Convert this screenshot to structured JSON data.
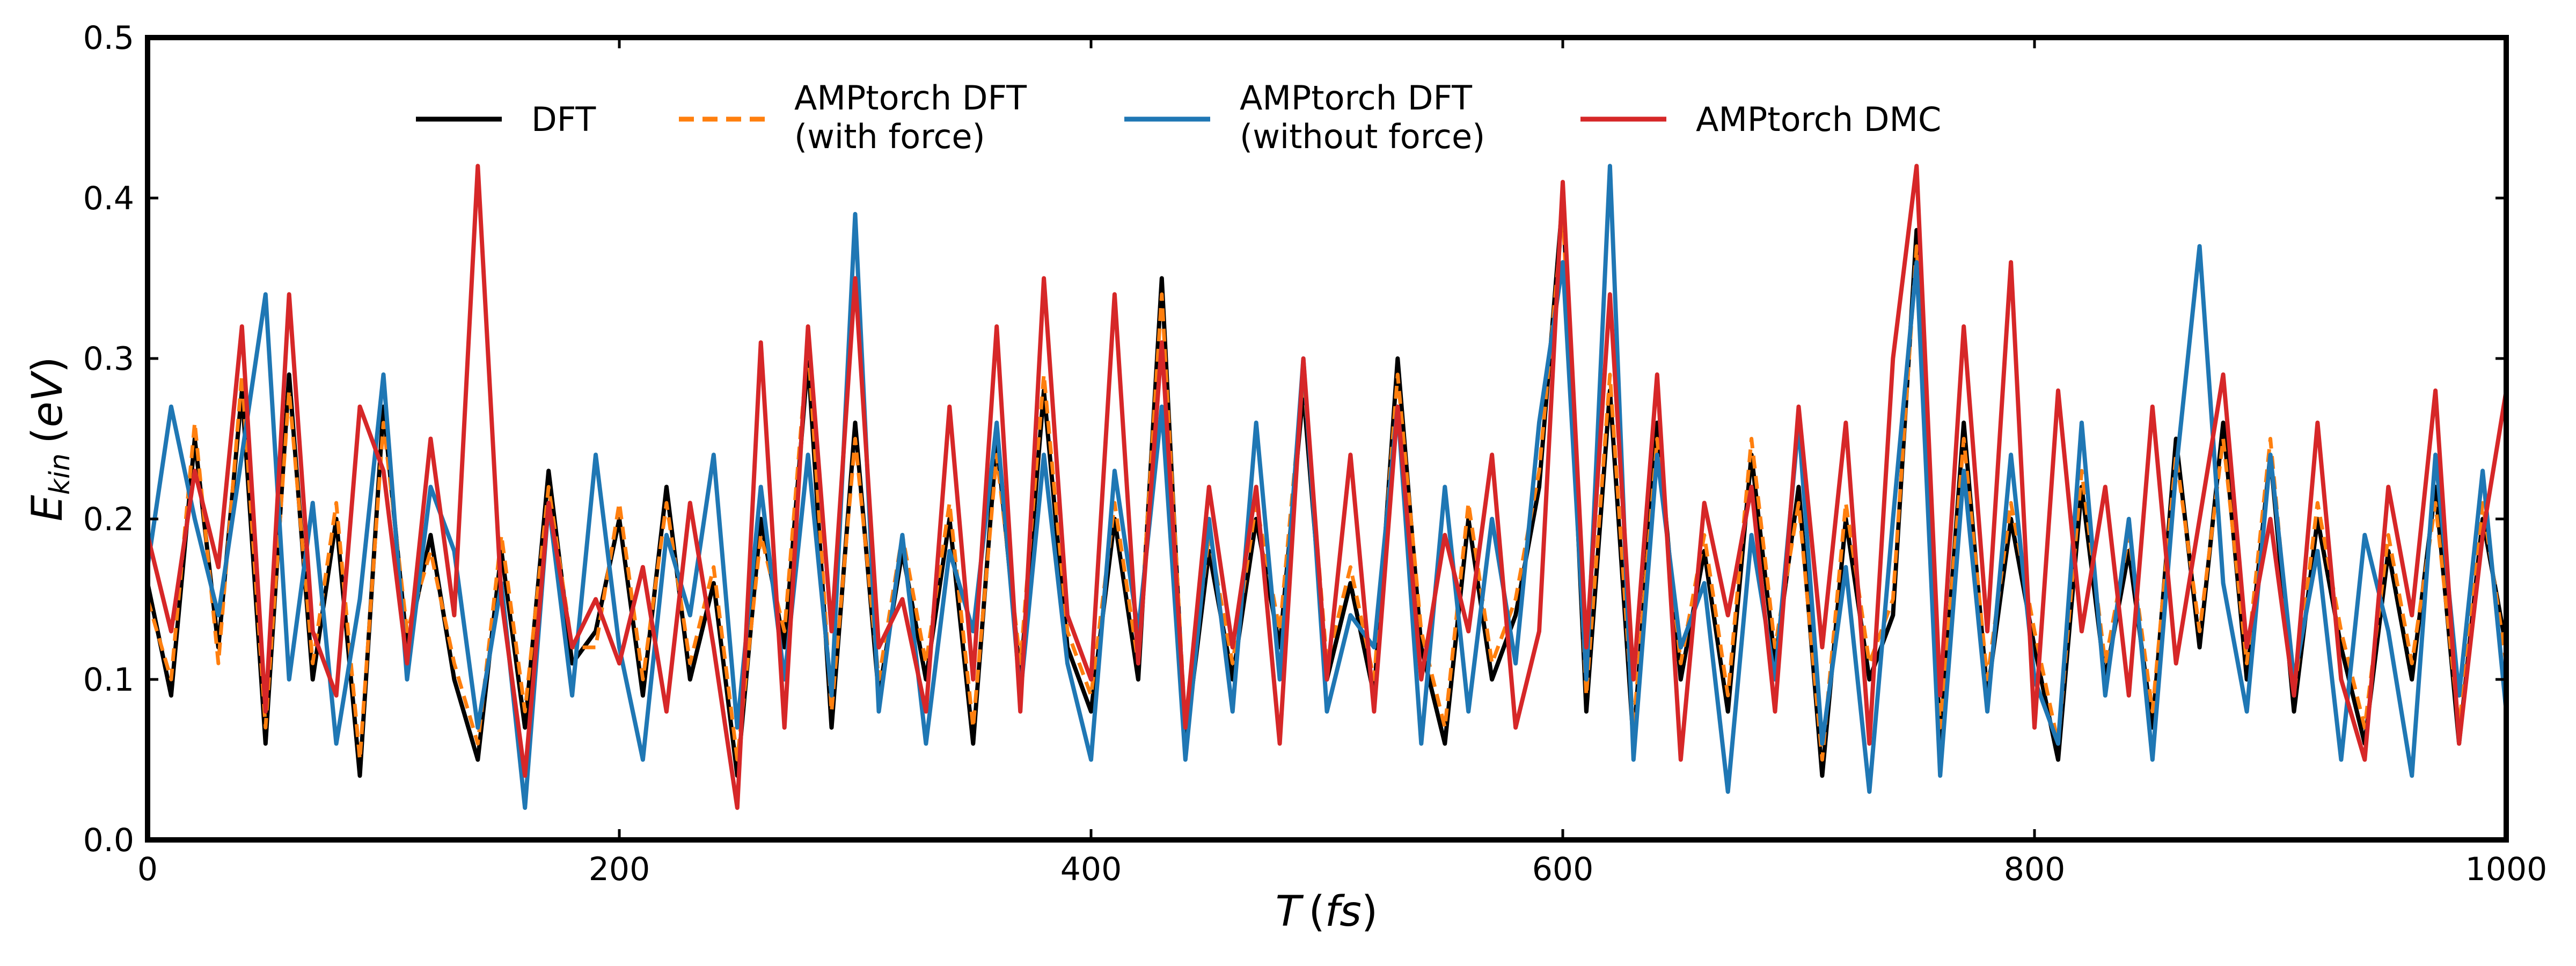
{
  "chart_data": {
    "type": "line",
    "xlabel": "T (fs)",
    "ylabel": "E_kin (eV)",
    "xlim": [
      0,
      1000
    ],
    "ylim": [
      0,
      0.5
    ],
    "xticks": [
      0,
      200,
      400,
      600,
      800,
      1000
    ],
    "yticks": [
      0.0,
      0.1,
      0.2,
      0.3,
      0.4,
      0.5
    ],
    "ytick_labels": [
      "0.0",
      "0.1",
      "0.2",
      "0.3",
      "0.4",
      "0.5"
    ],
    "grid": false,
    "legend_position": "top",
    "x": [
      0,
      10,
      20,
      30,
      40,
      50,
      60,
      70,
      80,
      90,
      100,
      110,
      120,
      130,
      140,
      150,
      160,
      170,
      180,
      190,
      200,
      210,
      220,
      230,
      240,
      250,
      260,
      270,
      280,
      290,
      300,
      310,
      320,
      330,
      340,
      350,
      360,
      370,
      380,
      390,
      400,
      410,
      420,
      430,
      440,
      450,
      460,
      470,
      480,
      490,
      500,
      510,
      520,
      530,
      540,
      550,
      560,
      570,
      580,
      590,
      600,
      610,
      620,
      630,
      640,
      650,
      660,
      670,
      680,
      690,
      700,
      710,
      720,
      730,
      740,
      750,
      760,
      770,
      780,
      790,
      800,
      810,
      820,
      830,
      840,
      850,
      860,
      870,
      880,
      890,
      900,
      910,
      920,
      930,
      940,
      950,
      960,
      970,
      980,
      990,
      1000
    ],
    "series": [
      {
        "name": "DFT",
        "color": "#000000",
        "dash": "solid",
        "values": [
          0.16,
          0.09,
          0.25,
          0.12,
          0.28,
          0.06,
          0.29,
          0.1,
          0.2,
          0.04,
          0.27,
          0.12,
          0.19,
          0.1,
          0.05,
          0.18,
          0.07,
          0.23,
          0.11,
          0.13,
          0.2,
          0.09,
          0.22,
          0.1,
          0.16,
          0.04,
          0.2,
          0.12,
          0.3,
          0.07,
          0.26,
          0.09,
          0.18,
          0.1,
          0.2,
          0.06,
          0.25,
          0.1,
          0.28,
          0.12,
          0.08,
          0.2,
          0.1,
          0.35,
          0.06,
          0.18,
          0.1,
          0.2,
          0.12,
          0.28,
          0.1,
          0.16,
          0.09,
          0.3,
          0.12,
          0.06,
          0.2,
          0.1,
          0.14,
          0.22,
          0.4,
          0.08,
          0.28,
          0.06,
          0.26,
          0.1,
          0.18,
          0.08,
          0.24,
          0.11,
          0.22,
          0.04,
          0.2,
          0.1,
          0.14,
          0.38,
          0.06,
          0.26,
          0.09,
          0.2,
          0.12,
          0.05,
          0.22,
          0.1,
          0.18,
          0.07,
          0.25,
          0.12,
          0.26,
          0.1,
          0.24,
          0.08,
          0.2,
          0.12,
          0.06,
          0.18,
          0.1,
          0.22,
          0.06,
          0.2,
          0.12
        ]
      },
      {
        "name": "AMPtorch DFT\n(with force)",
        "color": "#ff7f0e",
        "dash": "dashed",
        "values": [
          0.15,
          0.1,
          0.26,
          0.11,
          0.29,
          0.07,
          0.28,
          0.11,
          0.21,
          0.05,
          0.26,
          0.13,
          0.18,
          0.11,
          0.06,
          0.19,
          0.08,
          0.22,
          0.12,
          0.12,
          0.21,
          0.1,
          0.21,
          0.11,
          0.17,
          0.05,
          0.19,
          0.13,
          0.31,
          0.08,
          0.25,
          0.1,
          0.19,
          0.11,
          0.21,
          0.07,
          0.24,
          0.11,
          0.29,
          0.13,
          0.09,
          0.21,
          0.11,
          0.34,
          0.07,
          0.19,
          0.11,
          0.21,
          0.13,
          0.29,
          0.11,
          0.17,
          0.1,
          0.29,
          0.13,
          0.07,
          0.21,
          0.11,
          0.15,
          0.23,
          0.39,
          0.09,
          0.29,
          0.07,
          0.25,
          0.11,
          0.19,
          0.09,
          0.25,
          0.12,
          0.21,
          0.05,
          0.21,
          0.11,
          0.15,
          0.37,
          0.07,
          0.25,
          0.1,
          0.21,
          0.13,
          0.06,
          0.23,
          0.11,
          0.19,
          0.08,
          0.24,
          0.13,
          0.25,
          0.11,
          0.25,
          0.09,
          0.21,
          0.13,
          0.07,
          0.19,
          0.11,
          0.21,
          0.07,
          0.21,
          0.11
        ]
      },
      {
        "name": "AMPtorch DFT\n(without force)",
        "color": "#1f77b4",
        "dash": "solid",
        "values": [
          0.17,
          0.27,
          0.2,
          0.14,
          0.24,
          0.34,
          0.1,
          0.21,
          0.06,
          0.15,
          0.29,
          0.1,
          0.22,
          0.18,
          0.07,
          0.16,
          0.02,
          0.21,
          0.09,
          0.24,
          0.12,
          0.05,
          0.19,
          0.14,
          0.24,
          0.07,
          0.22,
          0.1,
          0.24,
          0.09,
          0.39,
          0.08,
          0.19,
          0.06,
          0.18,
          0.13,
          0.26,
          0.09,
          0.24,
          0.11,
          0.05,
          0.23,
          0.13,
          0.27,
          0.05,
          0.2,
          0.08,
          0.26,
          0.1,
          0.3,
          0.08,
          0.14,
          0.12,
          0.27,
          0.06,
          0.22,
          0.08,
          0.2,
          0.11,
          0.26,
          0.36,
          0.1,
          0.42,
          0.05,
          0.24,
          0.12,
          0.16,
          0.03,
          0.19,
          0.1,
          0.26,
          0.06,
          0.17,
          0.03,
          0.2,
          0.36,
          0.04,
          0.23,
          0.08,
          0.24,
          0.1,
          0.06,
          0.26,
          0.09,
          0.2,
          0.05,
          0.23,
          0.37,
          0.16,
          0.08,
          0.24,
          0.1,
          0.18,
          0.05,
          0.19,
          0.13,
          0.04,
          0.24,
          0.09,
          0.23,
          0.08
        ]
      },
      {
        "name": "AMPtorch DMC",
        "color": "#d62728",
        "dash": "solid",
        "values": [
          0.19,
          0.13,
          0.23,
          0.17,
          0.32,
          0.08,
          0.34,
          0.13,
          0.09,
          0.27,
          0.23,
          0.11,
          0.25,
          0.14,
          0.42,
          0.15,
          0.04,
          0.21,
          0.12,
          0.15,
          0.11,
          0.17,
          0.08,
          0.21,
          0.12,
          0.02,
          0.31,
          0.07,
          0.32,
          0.13,
          0.35,
          0.12,
          0.15,
          0.08,
          0.27,
          0.1,
          0.32,
          0.08,
          0.35,
          0.14,
          0.1,
          0.34,
          0.11,
          0.31,
          0.07,
          0.22,
          0.12,
          0.22,
          0.06,
          0.3,
          0.1,
          0.24,
          0.08,
          0.27,
          0.1,
          0.19,
          0.13,
          0.24,
          0.07,
          0.13,
          0.41,
          0.12,
          0.34,
          0.1,
          0.29,
          0.05,
          0.21,
          0.14,
          0.22,
          0.08,
          0.27,
          0.12,
          0.26,
          0.06,
          0.3,
          0.42,
          0.09,
          0.32,
          0.13,
          0.36,
          0.07,
          0.28,
          0.13,
          0.22,
          0.09,
          0.27,
          0.11,
          0.2,
          0.29,
          0.12,
          0.2,
          0.09,
          0.26,
          0.1,
          0.05,
          0.22,
          0.14,
          0.28,
          0.06,
          0.19,
          0.28
        ]
      }
    ]
  }
}
